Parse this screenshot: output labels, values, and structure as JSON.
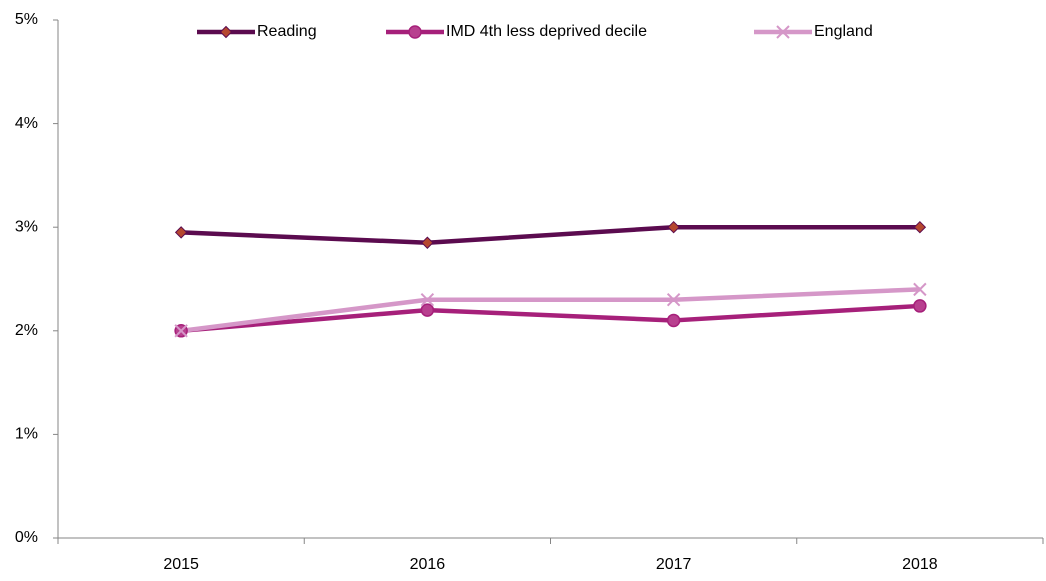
{
  "chart_data": {
    "type": "line",
    "categories": [
      "2015",
      "2016",
      "2017",
      "2018"
    ],
    "series": [
      {
        "name": "Reading",
        "color": "#5b0b4f",
        "marker": "diamond",
        "marker_color": "#b5472f",
        "values": [
          2.95,
          2.85,
          3.0,
          3.0
        ]
      },
      {
        "name": "IMD 4th less deprived decile",
        "color": "#a6207a",
        "marker": "circle",
        "marker_color": "#b8408f",
        "values": [
          2.0,
          2.2,
          2.1,
          2.24
        ]
      },
      {
        "name": "England",
        "color": "#d597c8",
        "marker": "x",
        "marker_color": "#d597c8",
        "values": [
          2.0,
          2.3,
          2.3,
          2.4
        ]
      }
    ],
    "ylim": [
      0,
      5
    ],
    "yticks": [
      {
        "value": 0,
        "label": "0%"
      },
      {
        "value": 1,
        "label": "1%"
      },
      {
        "value": 2,
        "label": "2%"
      },
      {
        "value": 3,
        "label": "3%"
      },
      {
        "value": 4,
        "label": "4%"
      },
      {
        "value": 5,
        "label": "5%"
      }
    ],
    "grid": false,
    "legend": "top"
  }
}
